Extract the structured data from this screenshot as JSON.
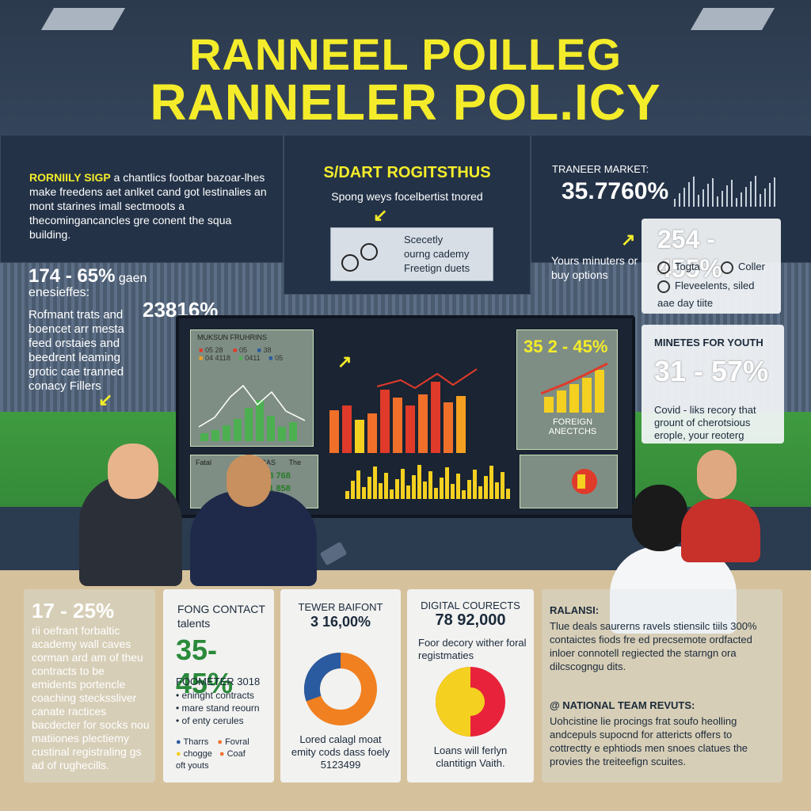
{
  "header": {
    "title_line1": "RANNEEL POILLEG",
    "title_line2": "RANNELER POL.ICY"
  },
  "top_left": {
    "heading": "RORNIILY SIGP",
    "text": "a chantlics footbar bazoar-lhes make freedens aet anlket cand got lestinalies an mont starines imall sectmoots a thecomingancancles gre conent the squa building."
  },
  "top_center": {
    "heading": "S/DART ROGITSTHUS",
    "subtitle": "Spong weys focelbertist tnored",
    "items": [
      "Scecetly",
      "ourng cademy",
      "Freetign duets"
    ]
  },
  "top_right": {
    "label": "TRANEER MARKET:",
    "value": "35.7760%",
    "note": "Yours minuters or buy options"
  },
  "right_card1": {
    "value": "254 - 455%",
    "items": [
      "Togta",
      "Coller",
      "Fleveelents, siled"
    ],
    "footer": "aae day tiite"
  },
  "right_card2": {
    "heading": "MINETES FOR YOUTH",
    "value": "31 - 57%",
    "text": "Covid - liks recory that grount of cherotsious erople, your reoterg"
  },
  "left_mid": {
    "value1": "174 - 65%",
    "value1_suffix": "gaen enesieffes:",
    "value2": "23816%",
    "text": "Rofmant trats and boencet arr mesta feed orstaies and beedrent leaming grotic cae tranned conacy Fillers"
  },
  "screen": {
    "legend_title": "MUKSUN FRUHRINS",
    "legend_rows": [
      "05 28",
      "05",
      "38",
      "04 4118",
      "0411",
      "05"
    ],
    "panel_right_value": "35 2 - 45%",
    "panel_right_label": "FOREIGN ANECTCHS",
    "table_headers": [
      "Fatal",
      "CAS",
      "The"
    ],
    "table_values": [
      "1653 768",
      "1891 858"
    ]
  },
  "bottom_card1": {
    "value": "17 - 25%",
    "text": "rii oefrant forbaltic academy wall caves corman ard am of theu contracts to be emidents portencle coaching steckssliver canate ractices bacdecter for socks nou matiiones plectiemy custinal registraling gs ad of rughecills."
  },
  "bottom_card2": {
    "heading": "FONG CONTACT talents",
    "value": "35-45%",
    "list_title": "FOOMETER 3018",
    "items": [
      "eninght contracts",
      "mare stand reourn",
      "of enty cerules"
    ],
    "legend": [
      "Tharrs",
      "Fovral",
      "chogge",
      "Coaf",
      "oft youts"
    ]
  },
  "bottom_card3": {
    "heading": "TEWER BAIFONT",
    "value": "3 16,00%",
    "text": "Lored calagl moat emity cods dass foely 5123499"
  },
  "bottom_card4": {
    "heading": "DIGITAL COURECTS",
    "value": "78 92,000",
    "subtitle": "Foor decory wither foral registmaties",
    "text": "Loans will ferlyn clantitign Vaith."
  },
  "bottom_right": {
    "heading1": "RALANSI:",
    "text1": "Tlue deals saurerns ravels stiensilc tiils 300% contaictes fiods fre ed precsemote ordfacted inloer connotell regiected the starngn ora dilcscogngu dits.",
    "heading2": "@ NATIONAL TEAM REVUTS:",
    "text2": "Uohcistine lie procings frat soufo heolling andcepuls supocnd for attericts offers to cottrectty e ephtiods men snoes clatues the provies the treiteefign scuites."
  },
  "colors": {
    "accent": "#f4ec2a",
    "bar_orange": "#f0702a",
    "bar_red": "#e03a2a",
    "bar_yellow": "#f4d020",
    "bar_green": "#4caf50",
    "donut_blue": "#2a5aa0",
    "donut_orange": "#f08020"
  }
}
